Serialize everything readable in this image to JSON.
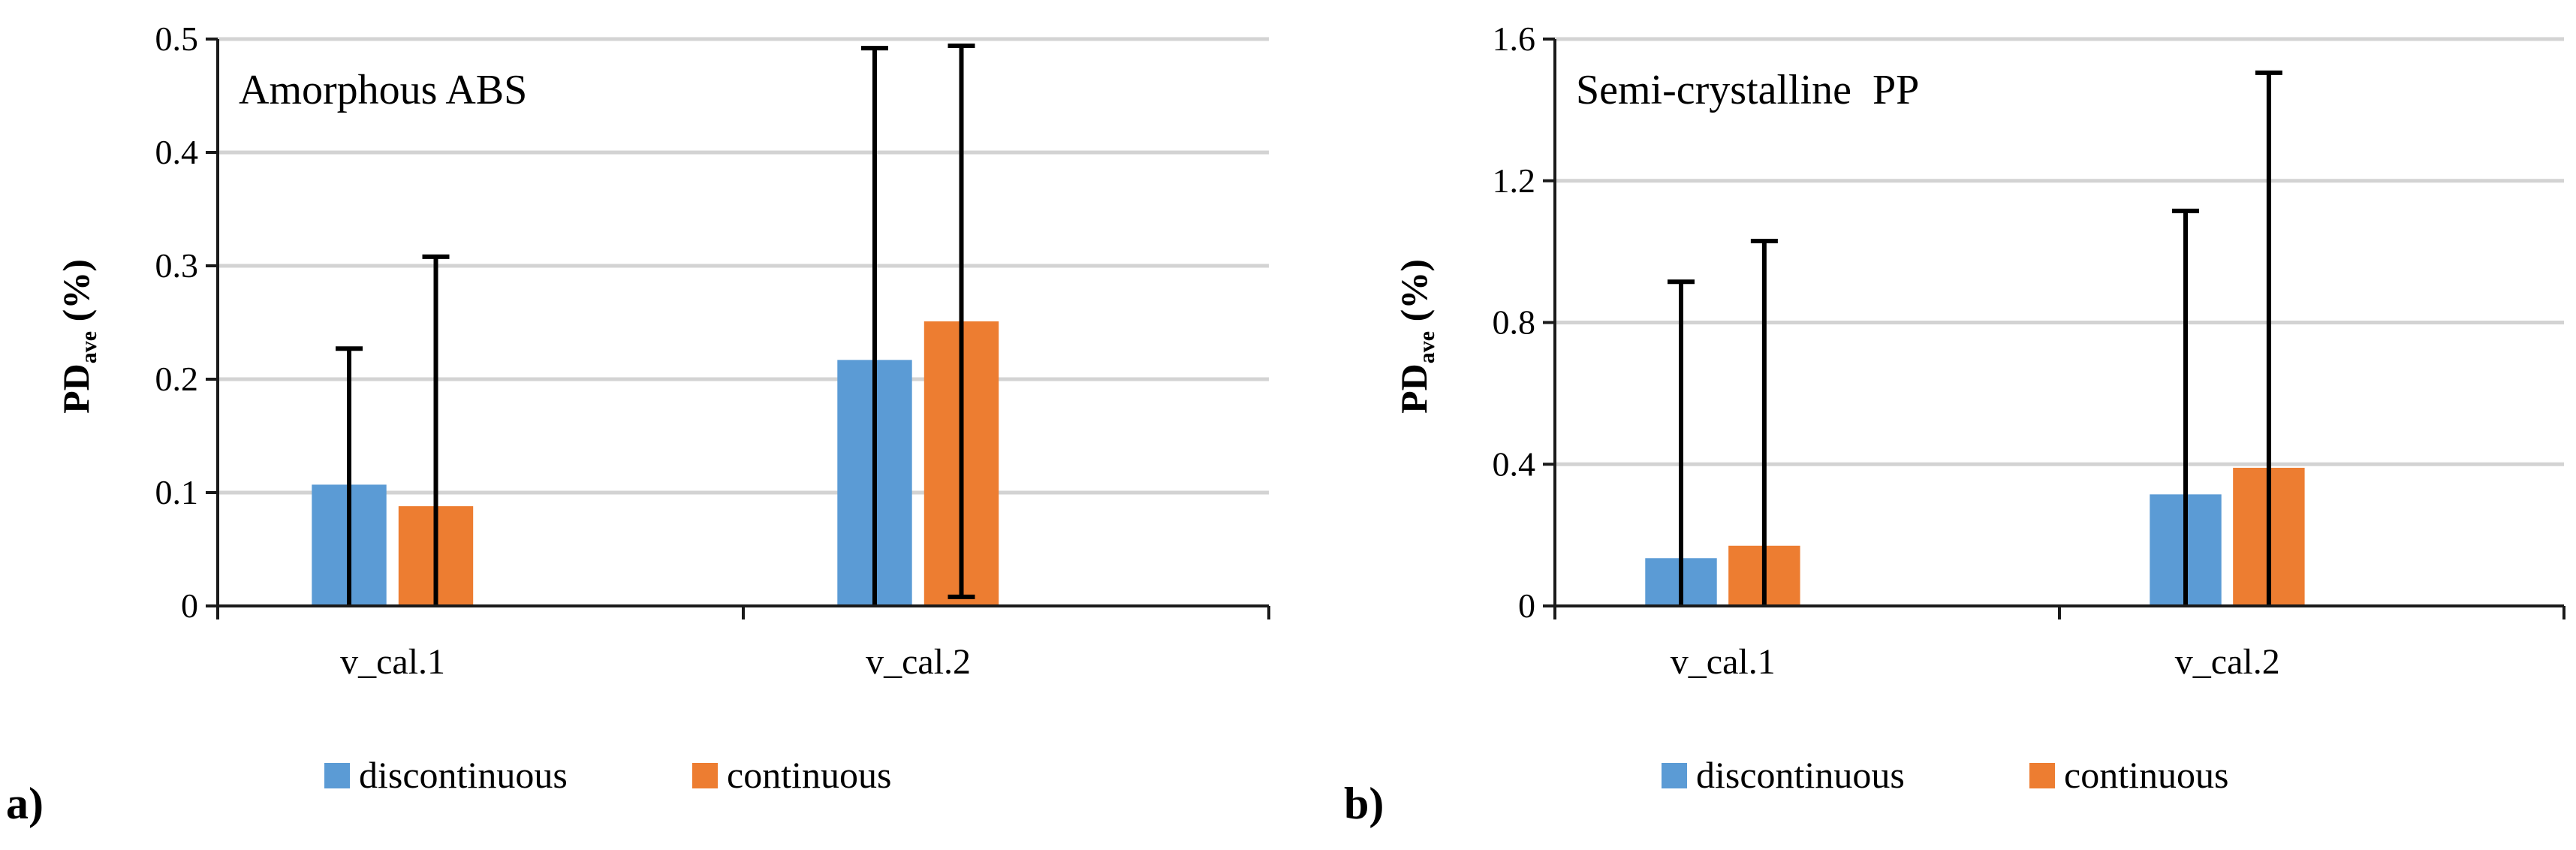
{
  "chart_data": [
    {
      "type": "bar",
      "panel_label": "a)",
      "title": "Amorphous ABS",
      "ylabel": "PD",
      "ylabel_sub": "ave",
      "ylabel_unit": " (%)",
      "xlabel": "",
      "ylim": [
        0,
        0.5
      ],
      "yticks": [
        "0",
        "0.1",
        "0.2",
        "0.3",
        "0.4",
        "0.5"
      ],
      "categories": [
        "v_cal.1",
        "v_cal.2"
      ],
      "series": [
        {
          "name": "discontinuous",
          "color": "#5b9bd5",
          "values": [
            0.107,
            0.217
          ],
          "error": [
            0.12,
            0.275
          ]
        },
        {
          "name": "continuous",
          "color": "#ed7d31",
          "values": [
            0.088,
            0.251
          ],
          "error": [
            0.22,
            0.243
          ]
        }
      ],
      "legend_position": "bottom",
      "grid": true
    },
    {
      "type": "bar",
      "panel_label": "b)",
      "title": "Semi-crystalline  PP",
      "ylabel": "PD",
      "ylabel_sub": "ave",
      "ylabel_unit": " (%)",
      "xlabel": "",
      "ylim": [
        0,
        1.6
      ],
      "yticks": [
        "0",
        "0.4",
        "0.8",
        "1.2",
        "1.6"
      ],
      "categories": [
        "v_cal.1",
        "v_cal.2"
      ],
      "series": [
        {
          "name": "discontinuous",
          "color": "#5b9bd5",
          "values": [
            0.135,
            0.315
          ],
          "error": [
            0.78,
            0.8
          ]
        },
        {
          "name": "continuous",
          "color": "#ed7d31",
          "values": [
            0.17,
            0.39
          ],
          "error": [
            0.86,
            1.115
          ]
        }
      ],
      "legend_position": "bottom",
      "grid": true
    }
  ]
}
